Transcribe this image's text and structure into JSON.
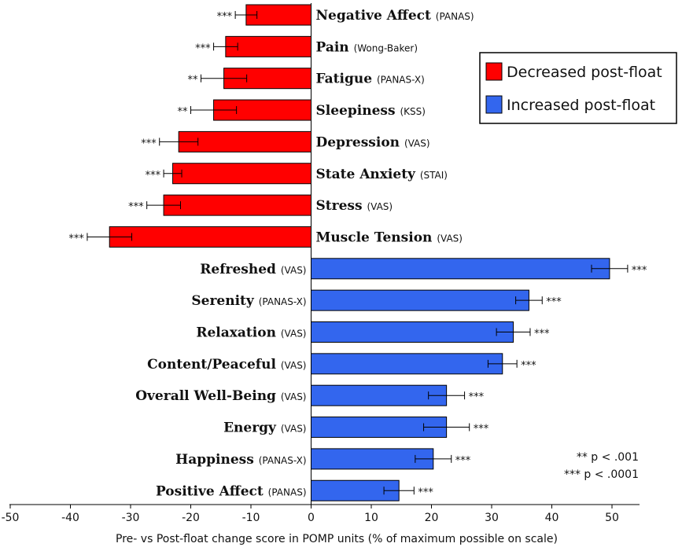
{
  "chart_data": {
    "type": "bar",
    "orientation": "horizontal",
    "xlabel": "Pre- vs Post-float change score in POMP units (% of maximum possible on scale)",
    "xlim": [
      -50,
      55
    ],
    "xticks": [
      -50,
      -40,
      -30,
      -20,
      -10,
      0,
      10,
      20,
      30,
      40,
      50
    ],
    "bars": [
      {
        "name": "Negative Affect",
        "scale": "(PANAS)",
        "value": -10.8,
        "err": 1.8,
        "sig": "***",
        "group": "decreased"
      },
      {
        "name": "Pain",
        "scale": "(Wong-Baker)",
        "value": -14.2,
        "err": 2.0,
        "sig": "***",
        "group": "decreased"
      },
      {
        "name": "Fatigue",
        "scale": "(PANAS-X)",
        "value": -14.5,
        "err": 3.8,
        "sig": "**",
        "group": "decreased"
      },
      {
        "name": "Sleepiness",
        "scale": "(KSS)",
        "value": -16.2,
        "err": 3.8,
        "sig": "**",
        "group": "decreased"
      },
      {
        "name": "Depression",
        "scale": "(VAS)",
        "value": -22.0,
        "err": 3.2,
        "sig": "***",
        "group": "decreased"
      },
      {
        "name": "State Anxiety",
        "scale": "(STAI)",
        "value": -23.0,
        "err": 1.5,
        "sig": "***",
        "group": "decreased"
      },
      {
        "name": "Stress",
        "scale": "(VAS)",
        "value": -24.5,
        "err": 2.8,
        "sig": "***",
        "group": "decreased"
      },
      {
        "name": "Muscle Tension",
        "scale": "(VAS)",
        "value": -33.5,
        "err": 3.7,
        "sig": "***",
        "group": "decreased"
      },
      {
        "name": "Refreshed",
        "scale": "(VAS)",
        "value": 49.6,
        "err": 3.0,
        "sig": "***",
        "group": "increased"
      },
      {
        "name": "Serenity",
        "scale": "(PANAS-X)",
        "value": 36.2,
        "err": 2.2,
        "sig": "***",
        "group": "increased"
      },
      {
        "name": "Relaxation",
        "scale": "(VAS)",
        "value": 33.6,
        "err": 2.8,
        "sig": "***",
        "group": "increased"
      },
      {
        "name": "Content/Peaceful",
        "scale": "(VAS)",
        "value": 31.8,
        "err": 2.4,
        "sig": "***",
        "group": "increased"
      },
      {
        "name": "Overall Well-Being",
        "scale": "(VAS)",
        "value": 22.5,
        "err": 3.0,
        "sig": "***",
        "group": "increased"
      },
      {
        "name": "Energy",
        "scale": "(VAS)",
        "value": 22.5,
        "err": 3.8,
        "sig": "***",
        "group": "increased"
      },
      {
        "name": "Happiness",
        "scale": "(PANAS-X)",
        "value": 20.3,
        "err": 3.0,
        "sig": "***",
        "group": "increased"
      },
      {
        "name": "Positive Affect",
        "scale": "(PANAS)",
        "value": 14.6,
        "err": 2.5,
        "sig": "***",
        "group": "increased"
      }
    ],
    "legend": {
      "placement": "top-right",
      "entries": [
        {
          "label": "Decreased post-float",
          "color": "#ff0000",
          "group": "decreased"
        },
        {
          "label": "Increased post-float",
          "color": "#3366ee",
          "group": "increased"
        }
      ]
    },
    "notes": [
      "** p < .001",
      "*** p < .0001"
    ]
  }
}
